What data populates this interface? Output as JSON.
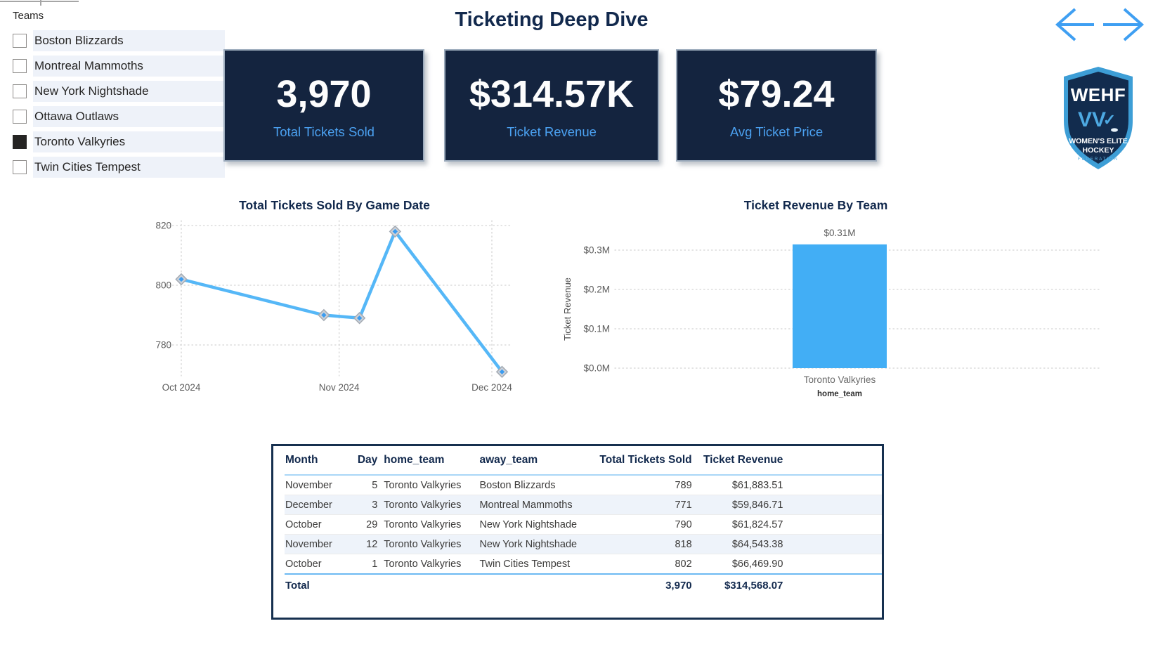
{
  "page": {
    "title": "Ticketing Deep Dive"
  },
  "slicer": {
    "title": "Teams",
    "items": [
      {
        "label": "Boston Blizzards",
        "checked": false
      },
      {
        "label": "Montreal Mammoths",
        "checked": false
      },
      {
        "label": "New York Nightshade",
        "checked": false
      },
      {
        "label": "Ottawa Outlaws",
        "checked": false
      },
      {
        "label": "Toronto Valkyries",
        "checked": true
      },
      {
        "label": "Twin Cities Tempest",
        "checked": false
      }
    ]
  },
  "kpis": [
    {
      "value": "3,970",
      "label": "Total Tickets Sold"
    },
    {
      "value": "$314.57K",
      "label": "Ticket Revenue"
    },
    {
      "value": "$79.24",
      "label": "Avg Ticket Price"
    }
  ],
  "logo": {
    "acronym": "WEHF",
    "monogram": "VV",
    "check": "✓",
    "line1": "WOMEN'S ELITE",
    "line2": "HOCKEY",
    "line3": "FEDERATION"
  },
  "chart_data": [
    {
      "type": "line",
      "title": "Total Tickets Sold By Game Date",
      "x_dates": [
        "2024-10-01",
        "2024-10-29",
        "2024-11-05",
        "2024-11-12",
        "2024-12-03"
      ],
      "values": [
        802,
        790,
        789,
        818,
        771
      ],
      "x_tick_dates": [
        "2024-10-01",
        "2024-11-01",
        "2024-12-01"
      ],
      "x_tick_labels": [
        "Oct 2024",
        "Nov 2024",
        "Dec 2024"
      ],
      "y_ticks": [
        780,
        800,
        820
      ],
      "ylim": [
        768,
        824
      ],
      "grid": true,
      "legend": "none",
      "line_color": "#55b7f7",
      "marker": "diamond"
    },
    {
      "type": "bar",
      "title": "Ticket Revenue By Team",
      "categories": [
        "Toronto Valkyries"
      ],
      "values": [
        314568.07
      ],
      "bar_labels": [
        "$0.31M"
      ],
      "xlabel": "home_team",
      "ylabel": "Ticket Revenue",
      "y_ticks": [
        0,
        100000,
        200000,
        300000
      ],
      "y_tick_labels": [
        "$0.0M",
        "$0.1M",
        "$0.2M",
        "$0.3M"
      ],
      "ylim": [
        0,
        350000
      ],
      "grid": true,
      "legend": "none",
      "bar_color": "#42aef5"
    }
  ],
  "table": {
    "columns": [
      {
        "label": "Month",
        "align": "left"
      },
      {
        "label": "Day",
        "align": "right"
      },
      {
        "label": "home_team",
        "align": "left"
      },
      {
        "label": "away_team",
        "align": "left"
      },
      {
        "label": "Total Tickets Sold",
        "align": "right"
      },
      {
        "label": "Ticket Revenue",
        "align": "right"
      }
    ],
    "rows": [
      [
        "November",
        "5",
        "Toronto Valkyries",
        "Boston Blizzards",
        "789",
        "$61,883.51"
      ],
      [
        "December",
        "3",
        "Toronto Valkyries",
        "Montreal Mammoths",
        "771",
        "$59,846.71"
      ],
      [
        "October",
        "29",
        "Toronto Valkyries",
        "New York Nightshade",
        "790",
        "$61,824.57"
      ],
      [
        "November",
        "12",
        "Toronto Valkyries",
        "New York Nightshade",
        "818",
        "$64,543.38"
      ],
      [
        "October",
        "1",
        "Toronto Valkyries",
        "Twin Cities Tempest",
        "802",
        "$66,469.90"
      ]
    ],
    "total": [
      "Total",
      "",
      "",
      "",
      "3,970",
      "$314,568.07"
    ]
  },
  "colors": {
    "accent_blue": "#3f9ff2",
    "card_navy": "#14243f",
    "title_navy": "#12294d",
    "line_blue": "#55b7f7",
    "bar_blue": "#42aef5"
  }
}
